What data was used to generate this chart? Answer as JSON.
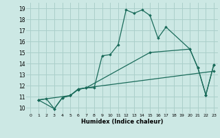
{
  "xlabel": "Humidex (Indice chaleur)",
  "bg_color": "#cce8e4",
  "grid_color": "#aacfca",
  "line_color": "#1a6b5a",
  "xlim": [
    -0.5,
    23.5
  ],
  "ylim": [
    9.5,
    19.5
  ],
  "xticks": [
    0,
    1,
    2,
    3,
    4,
    5,
    6,
    7,
    8,
    9,
    10,
    11,
    12,
    13,
    14,
    15,
    16,
    17,
    18,
    19,
    20,
    21,
    22,
    23
  ],
  "yticks": [
    10,
    11,
    12,
    13,
    14,
    15,
    16,
    17,
    18,
    19
  ],
  "series": [
    {
      "x": [
        1,
        2,
        3,
        4,
        5,
        6,
        7,
        8,
        9,
        10,
        11,
        12,
        13,
        14,
        15,
        16,
        17,
        20,
        21,
        22,
        23
      ],
      "y": [
        10.7,
        10.8,
        9.9,
        10.9,
        11.1,
        11.7,
        11.8,
        11.8,
        14.7,
        14.8,
        15.7,
        18.85,
        18.55,
        18.85,
        18.35,
        16.3,
        17.3,
        15.3,
        13.6,
        11.15,
        13.9
      ]
    },
    {
      "x": [
        1,
        5,
        6,
        7,
        15,
        20,
        21,
        22,
        23
      ],
      "y": [
        10.7,
        11.1,
        11.65,
        11.8,
        15.0,
        15.3,
        13.6,
        11.15,
        13.9
      ]
    },
    {
      "x": [
        1,
        3,
        4,
        5,
        6,
        7,
        23
      ],
      "y": [
        10.7,
        9.9,
        10.9,
        11.1,
        11.65,
        11.8,
        13.3
      ]
    }
  ]
}
